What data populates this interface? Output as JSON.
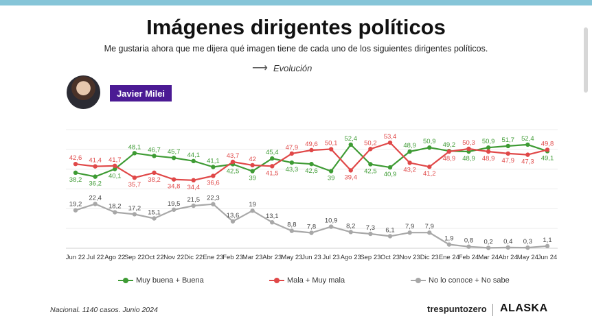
{
  "title": "Imágenes dirigentes políticos",
  "subtitle": "Me gustaria ahora que me dijera qué imagen tiene de cada uno de los siguientes dirigentes políticos.",
  "evolution_label": "Evolución",
  "person_name": "Javier Milei",
  "source_note": "Nacional. 1140 casos. Junio 2024",
  "brand": {
    "primary": "trespuntozero",
    "secondary": "ALASKA"
  },
  "chart_data": {
    "type": "line",
    "categories": [
      "Jun 22",
      "Jul 22",
      "Ago 22",
      "Sep 22",
      "Oct 22",
      "Nov 22",
      "Dic 22",
      "Ene 23",
      "Feb 23",
      "Mar 23",
      "Abr 23",
      "May 23",
      "Jun 23",
      "Jul 23",
      "Ago 23",
      "Sep 23",
      "Oct 23",
      "Nov 23",
      "Dic 23",
      "Ene 24",
      "Feb 24",
      "Mar 24",
      "Abr 24",
      "May 24",
      "Jun 24"
    ],
    "series": [
      {
        "name": "Muy buena + Buena",
        "color": "#3e9b34",
        "values": [
          38.2,
          36.2,
          40.1,
          48.1,
          46.7,
          45.7,
          44.1,
          41.1,
          42.5,
          39,
          45.4,
          43.3,
          42.6,
          39,
          52.4,
          42.5,
          40.9,
          48.9,
          50.9,
          49.2,
          48.9,
          50.9,
          51.7,
          52.4,
          49.1
        ],
        "labels": [
          "38,2",
          "36,2",
          "40,1",
          "48,1",
          "46,7",
          "45,7",
          "44,1",
          "41,1",
          "42,5",
          "39",
          "45,4",
          "43,3",
          "42,6",
          "39",
          "52,4",
          "42,5",
          "40,9",
          "48,9",
          "50,9",
          "49,2",
          "48,9",
          "50,9",
          "51,7",
          "52,4",
          "49,1"
        ]
      },
      {
        "name": "Mala + Muy mala",
        "color": "#e04848",
        "values": [
          42.6,
          41.4,
          41.7,
          35.7,
          38.2,
          34.8,
          34.4,
          36.6,
          43.7,
          42,
          41.5,
          47.9,
          49.6,
          50.1,
          39.4,
          50.2,
          53.4,
          43.2,
          41.2,
          48.9,
          50.3,
          48.9,
          47.9,
          47.3,
          49.8
        ],
        "labels": [
          "42,6",
          "41,4",
          "41,7",
          "35,7",
          "38,2",
          "34,8",
          "34,4",
          "36,6",
          "43,7",
          "42",
          "41,5",
          "47,9",
          "49,6",
          "50,1",
          "39,4",
          "50,2",
          "53,4",
          "43,2",
          "41,2",
          "48,9",
          "50,3",
          "48,9",
          "47,9",
          "47,3",
          "49,8"
        ]
      },
      {
        "name": "No lo conoce + No sabe",
        "color": "#a8a8a8",
        "values": [
          19.2,
          22.4,
          18.2,
          17.2,
          15.1,
          19.5,
          21.5,
          22.3,
          13.6,
          19,
          13.1,
          8.8,
          7.8,
          10.9,
          8.2,
          7.3,
          6.1,
          7.9,
          7.9,
          1.9,
          0.8,
          0.2,
          0.4,
          0.3,
          1.1
        ],
        "labels": [
          "19,2",
          "22,4",
          "18,2",
          "17,2",
          "15,1",
          "19,5",
          "21,5",
          "22,3",
          "13,6",
          "19",
          "13,1",
          "8,8",
          "7,8",
          "10,9",
          "8,2",
          "7,3",
          "6,1",
          "7,9",
          "7,9",
          "1,9",
          "0,8",
          "0,2",
          "0,4",
          "0,3",
          "1,1"
        ]
      }
    ],
    "ylim": [
      0,
      60
    ],
    "grid": true,
    "legend_position": "bottom"
  }
}
